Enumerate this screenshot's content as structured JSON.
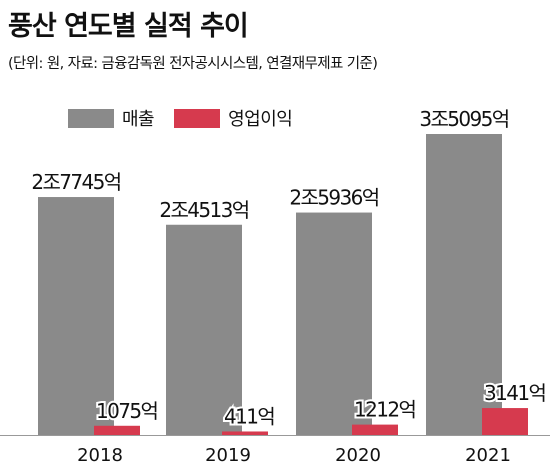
{
  "chart_data": {
    "type": "bar",
    "title": "풍산 연도별 실적 추이",
    "subtitle": "(단위: 원, 자료: 금융감독원 전자공시시스템, 연결재무제표 기준)",
    "categories": [
      "2018",
      "2019",
      "2020",
      "2021"
    ],
    "series": [
      {
        "name": "매출",
        "color": "#8a8a8a",
        "values": [
          27745,
          24513,
          25936,
          35095
        ],
        "labels": [
          "2조7745억",
          "2조4513억",
          "2조5936억",
          "3조5095억"
        ]
      },
      {
        "name": "영업이익",
        "color": "#d63a4e",
        "values": [
          1075,
          411,
          1212,
          3141
        ],
        "labels": [
          "1075억",
          "411억",
          "1212억",
          "3141억"
        ]
      }
    ],
    "unit": "억 원",
    "ylim": [
      0,
      35095
    ],
    "grid": false,
    "legend": "top-left"
  }
}
